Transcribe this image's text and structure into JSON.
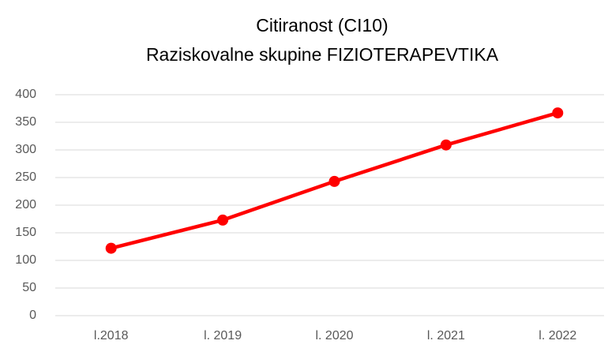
{
  "chart_data": {
    "type": "line",
    "title": "Citiranost (CI10)",
    "subtitle": "Raziskovalne skupine FIZIOTERAPEVTIKA",
    "categories": [
      "l.2018",
      "l. 2019",
      "l. 2020",
      "l. 2021",
      "l. 2022"
    ],
    "series": [
      {
        "name": "Citiranost (CI10)",
        "color": "#ff0000",
        "values": [
          122,
          173,
          243,
          309,
          367
        ]
      }
    ],
    "ylim": [
      0,
      400
    ],
    "yticks": [
      0,
      50,
      100,
      150,
      200,
      250,
      300,
      350,
      400
    ],
    "grid": true
  }
}
